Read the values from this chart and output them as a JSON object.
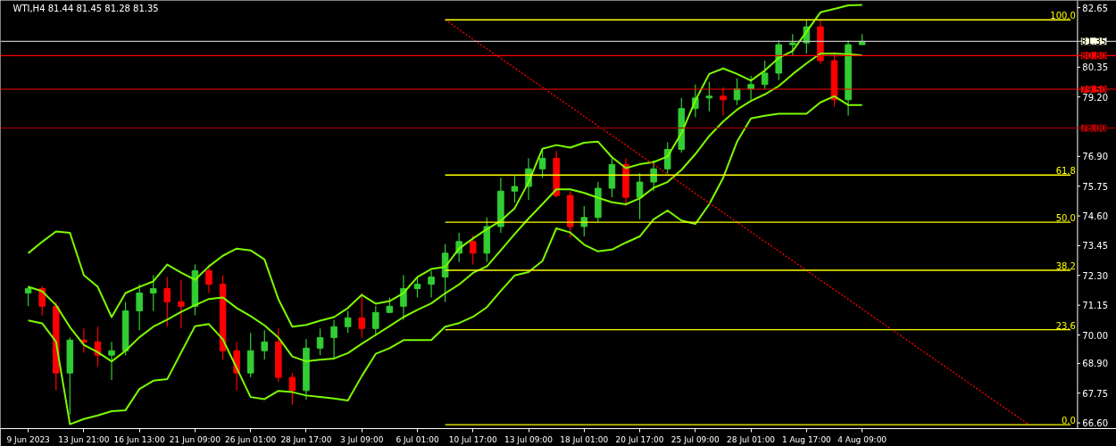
{
  "chart_data": {
    "type": "candlestick",
    "title": "WTI,H4  81.44 81.45 81.28 81.35",
    "ylim": [
      66.38,
      82.93
    ],
    "yticks": [
      82.65,
      80.35,
      {
        "value": 79.2,
        "label": "79.20"
      },
      {
        "value": 76.9,
        "label": "76.90"
      },
      75.75,
      {
        "value": 74.6,
        "label": "74.60"
      },
      73.45,
      {
        "value": 72.3,
        "label": "72.30"
      },
      71.15,
      {
        "value": 70.0,
        "label": "70.00"
      },
      {
        "value": 68.9,
        "label": "68.90"
      },
      67.75,
      {
        "value": 66.6,
        "label": "66.60"
      }
    ],
    "categories": [
      "9 Jun 2023",
      null,
      null,
      null,
      "13 Jun 21:00",
      null,
      null,
      null,
      "16 Jun 13:00",
      null,
      null,
      null,
      "21 Jun 09:00",
      null,
      null,
      null,
      "26 Jun 01:00",
      null,
      null,
      null,
      "28 Jun 17:00",
      null,
      null,
      null,
      "3 Jul 09:00",
      null,
      null,
      null,
      "6 Jul 01:00",
      null,
      null,
      null,
      "10 Jul 17:00",
      null,
      null,
      null,
      "13 Jul 09:00",
      null,
      null,
      null,
      "18 Jul 01:00",
      null,
      null,
      null,
      "20 Jul 17:00",
      null,
      null,
      null,
      "25 Jul 09:00",
      null,
      null,
      null,
      "28 Jul 01:00",
      null,
      null,
      null,
      "1 Aug 17:00",
      null,
      null,
      null,
      "4 Aug 09:00",
      null,
      null,
      null,
      null,
      null,
      null,
      null,
      null,
      null,
      null,
      null,
      null,
      null,
      null,
      null
    ],
    "ohlc": [
      [
        71.62,
        71.89,
        71.11,
        71.79
      ],
      [
        71.79,
        71.89,
        70.76,
        71.11
      ],
      [
        71.11,
        71.28,
        67.85,
        68.53
      ],
      [
        68.53,
        69.9,
        66.92,
        69.8
      ],
      [
        69.8,
        70.25,
        69.32,
        69.73
      ],
      [
        69.73,
        70.32,
        68.77,
        69.22
      ],
      [
        69.22,
        69.73,
        68.26,
        69.39
      ],
      [
        69.39,
        71.28,
        69.22,
        70.93
      ],
      [
        70.93,
        71.96,
        70.18,
        71.62
      ],
      [
        71.62,
        72.31,
        70.93,
        71.79
      ],
      [
        71.79,
        72.24,
        70.32,
        71.28
      ],
      [
        71.28,
        72.13,
        70.25,
        71.11
      ],
      [
        71.11,
        72.72,
        70.76,
        72.48
      ],
      [
        72.48,
        72.72,
        71.62,
        71.96
      ],
      [
        71.96,
        72.31,
        69.05,
        69.39
      ],
      [
        69.39,
        69.73,
        67.85,
        68.53
      ],
      [
        68.53,
        70.08,
        68.36,
        69.39
      ],
      [
        69.39,
        70.18,
        69.05,
        69.73
      ],
      [
        69.73,
        70.25,
        68.19,
        68.36
      ],
      [
        68.36,
        68.53,
        67.3,
        67.85
      ],
      [
        67.85,
        69.84,
        67.5,
        69.49
      ],
      [
        69.49,
        70.25,
        69.22,
        69.9
      ],
      [
        69.9,
        70.59,
        69.05,
        70.32
      ],
      [
        70.32,
        70.93,
        70.08,
        70.66
      ],
      [
        70.66,
        71.62,
        69.9,
        70.25
      ],
      [
        70.25,
        71.11,
        69.97,
        70.87
      ],
      [
        70.87,
        71.45,
        70.87,
        71.11
      ],
      [
        71.11,
        72.31,
        70.59,
        71.79
      ],
      [
        71.79,
        72.24,
        71.45,
        71.96
      ],
      [
        71.96,
        72.48,
        71.45,
        72.24
      ],
      [
        72.24,
        73.51,
        71.28,
        73.16
      ],
      [
        73.16,
        73.95,
        72.82,
        73.61
      ],
      [
        73.61,
        73.85,
        72.72,
        73.16
      ],
      [
        73.16,
        74.54,
        72.82,
        74.19
      ],
      [
        74.19,
        76.08,
        73.95,
        75.56
      ],
      [
        75.56,
        76.15,
        75.12,
        75.74
      ],
      [
        75.74,
        76.83,
        75.22,
        76.42
      ],
      [
        76.42,
        77.17,
        76.08,
        76.83
      ],
      [
        76.83,
        77.11,
        75.32,
        75.39
      ],
      [
        75.39,
        75.56,
        73.75,
        74.19
      ],
      [
        74.19,
        74.98,
        73.81,
        74.54
      ],
      [
        74.54,
        75.91,
        74.36,
        75.67
      ],
      [
        75.67,
        76.83,
        75.32,
        76.59
      ],
      [
        76.59,
        76.83,
        74.98,
        75.32
      ],
      [
        75.32,
        76.25,
        74.47,
        75.91
      ],
      [
        75.91,
        76.76,
        75.56,
        76.42
      ],
      [
        76.42,
        77.45,
        76.25,
        77.17
      ],
      [
        77.17,
        79.16,
        77.04,
        78.75
      ],
      [
        78.75,
        79.68,
        78.41,
        79.16
      ],
      [
        79.16,
        79.78,
        78.65,
        79.23
      ],
      [
        79.23,
        79.57,
        78.48,
        79.09
      ],
      [
        79.09,
        79.92,
        78.89,
        79.51
      ],
      [
        79.51,
        80.02,
        79.09,
        79.68
      ],
      [
        79.68,
        80.6,
        79.51,
        80.12
      ],
      [
        80.12,
        81.39,
        79.85,
        81.22
      ],
      [
        81.22,
        81.63,
        80.81,
        81.29
      ],
      [
        81.29,
        82.18,
        80.88,
        81.91
      ],
      [
        81.91,
        82.18,
        80.47,
        80.6
      ],
      [
        80.6,
        80.95,
        78.82,
        79.09
      ],
      [
        79.09,
        81.39,
        78.48,
        81.22
      ],
      [
        81.22,
        81.63,
        81.22,
        81.35
      ],
      null,
      null,
      null,
      null,
      null,
      null,
      null,
      null,
      null,
      null,
      null,
      null,
      null,
      null,
      null
    ],
    "colors": [
      "#32cd32",
      "#ff0000",
      "#ff0000",
      "#32cd32",
      "#ff0000",
      "#ff0000",
      "#32cd32",
      "#32cd32",
      "#32cd32",
      "#32cd32",
      "#ff0000",
      "#ff0000",
      "#32cd32",
      "#ff0000",
      "#ff0000",
      "#ff0000",
      "#32cd32",
      "#32cd32",
      "#ff0000",
      "#ff0000",
      "#32cd32",
      "#32cd32",
      "#32cd32",
      "#32cd32",
      "#ff0000",
      "#32cd32",
      "#32cd32",
      "#32cd32",
      "#32cd32",
      "#32cd32",
      "#32cd32",
      "#32cd32",
      "#ff0000",
      "#32cd32",
      "#32cd32",
      "#32cd32",
      "#32cd32",
      "#32cd32",
      "#ff0000",
      "#ff0000",
      "#32cd32",
      "#32cd32",
      "#32cd32",
      "#ff0000",
      "#32cd32",
      "#32cd32",
      "#32cd32",
      "#32cd32",
      "#32cd32",
      "#32cd32",
      "#ff0000",
      "#32cd32",
      "#32cd32",
      "#32cd32",
      "#32cd32",
      "#32cd32",
      "#32cd32",
      "#ff0000",
      "#ff0000",
      "#32cd32",
      "#32cd32",
      null,
      null,
      null,
      null,
      null,
      null,
      null,
      null,
      null,
      null,
      null,
      null,
      null,
      null,
      null
    ],
    "series": [
      {
        "type": "line",
        "color": "#7cfc00",
        "values": [
          73.16,
          73.6,
          74.0,
          73.95,
          72.31,
          71.86,
          70.69,
          71.62,
          71.86,
          72.07,
          72.72,
          72.41,
          72.13,
          72.65,
          73.06,
          73.34,
          73.27,
          72.92,
          71.38,
          70.32,
          70.39,
          70.55,
          70.69,
          71.04,
          71.55,
          71.21,
          71.31,
          71.62,
          72.24,
          72.55,
          72.63,
          73.34,
          73.73,
          74.09,
          74.41,
          74.9,
          75.9,
          77.2,
          77.34,
          77.24,
          77.43,
          77.47,
          76.87,
          76.45,
          76.6,
          76.68,
          76.9,
          77.8,
          79.06,
          80.09,
          80.3,
          80.09,
          79.83,
          80.22,
          80.71,
          80.98,
          81.72,
          82.47,
          82.6,
          82.74,
          82.76,
          null,
          null,
          null,
          null,
          null,
          null,
          null,
          null,
          null,
          null,
          null,
          null,
          null,
          null,
          null
        ]
      },
      {
        "type": "line",
        "color": "#7cfc00",
        "values": [
          71.86,
          71.69,
          71.15,
          70.3,
          69.62,
          69.33,
          68.98,
          69.39,
          69.91,
          70.32,
          70.59,
          70.89,
          71.15,
          71.39,
          71.45,
          71.04,
          70.73,
          70.37,
          69.9,
          69.17,
          68.98,
          69.04,
          69.09,
          69.3,
          69.66,
          70.0,
          70.34,
          70.69,
          70.97,
          71.22,
          71.61,
          71.95,
          72.4,
          72.65,
          73.27,
          73.9,
          74.5,
          75.06,
          75.63,
          75.63,
          75.49,
          75.3,
          75.13,
          75.05,
          75.28,
          75.69,
          75.91,
          76.38,
          76.99,
          77.69,
          78.25,
          78.71,
          79.05,
          79.3,
          79.62,
          80.08,
          80.5,
          80.88,
          80.88,
          80.85,
          80.81,
          null,
          null,
          null,
          null,
          null,
          null,
          null,
          null,
          null,
          null,
          null,
          null,
          null,
          null,
          null
        ]
      },
      {
        "type": "line",
        "color": "#7cfc00",
        "values": [
          70.56,
          70.45,
          69.74,
          66.55,
          66.75,
          66.89,
          67.05,
          67.09,
          67.91,
          68.23,
          68.29,
          69.32,
          70.34,
          70.42,
          69.83,
          68.72,
          67.6,
          67.52,
          67.84,
          67.79,
          67.66,
          67.6,
          67.54,
          67.47,
          68.41,
          69.27,
          69.49,
          69.8,
          69.8,
          69.8,
          70.32,
          70.46,
          70.7,
          71.07,
          71.7,
          72.3,
          72.43,
          72.86,
          74.12,
          73.96,
          73.49,
          73.23,
          73.3,
          73.57,
          73.81,
          74.47,
          74.81,
          74.42,
          74.29,
          75.05,
          76.07,
          77.47,
          78.37,
          78.47,
          78.55,
          78.55,
          78.55,
          78.99,
          79.23,
          78.89,
          78.89,
          null,
          null,
          null,
          null,
          null,
          null,
          null,
          null,
          null,
          null,
          null,
          null,
          null,
          null,
          null
        ]
      },
      {
        "type": "line",
        "color": "#ff0000",
        "line_style": "dotted",
        "values": [
          null,
          null,
          null,
          null,
          null,
          null,
          null,
          null,
          null,
          null,
          null,
          null,
          null,
          null,
          null,
          null,
          null,
          null,
          null,
          null,
          null,
          null,
          null,
          null,
          null,
          null,
          null,
          null,
          null,
          null,
          82.18,
          81.81,
          81.43,
          81.06,
          80.69,
          80.32,
          79.94,
          79.57,
          79.2,
          78.83,
          78.45,
          78.08,
          77.71,
          77.34,
          76.96,
          76.59,
          76.22,
          75.85,
          75.47,
          75.1,
          74.73,
          74.36,
          73.98,
          73.61,
          73.24,
          72.87,
          72.49,
          72.12,
          71.75,
          71.38,
          71.0,
          70.63,
          70.26,
          69.89,
          69.51,
          69.14,
          68.77,
          68.4,
          68.02,
          67.65,
          67.28,
          66.91,
          66.53,
          null,
          null,
          null
        ]
      },
      {
        "type": "line",
        "color": "#ffff00",
        "name": "100.0",
        "values": [
          null,
          null,
          null,
          null,
          null,
          null,
          null,
          null,
          null,
          null,
          null,
          null,
          null,
          null,
          null,
          null,
          null,
          null,
          null,
          null,
          null,
          null,
          null,
          null,
          null,
          null,
          null,
          null,
          null,
          null,
          82.18,
          82.18,
          82.18,
          82.18,
          82.18,
          82.18,
          82.18,
          82.18,
          82.18,
          82.18,
          82.18,
          82.18,
          82.18,
          82.18,
          82.18,
          82.18,
          82.18,
          82.18,
          82.18,
          82.18,
          82.18,
          82.18,
          82.18,
          82.18,
          82.18,
          82.18,
          82.18,
          82.18,
          82.18,
          82.18,
          82.18,
          82.18,
          82.18,
          82.18,
          82.18,
          82.18,
          82.18,
          82.18,
          82.18,
          82.18,
          82.18,
          82.18,
          82.18,
          82.18,
          82.18,
          82.18
        ]
      },
      {
        "type": "line",
        "color": "#ffff00",
        "name": "61.8",
        "values": [
          null,
          null,
          null,
          null,
          null,
          null,
          null,
          null,
          null,
          null,
          null,
          null,
          null,
          null,
          null,
          null,
          null,
          null,
          null,
          null,
          null,
          null,
          null,
          null,
          null,
          null,
          null,
          null,
          null,
          null,
          76.18,
          76.18,
          76.18,
          76.18,
          76.18,
          76.18,
          76.18,
          76.18,
          76.18,
          76.18,
          76.18,
          76.18,
          76.18,
          76.18,
          76.18,
          76.18,
          76.18,
          76.18,
          76.18,
          76.18,
          76.18,
          76.18,
          76.18,
          76.18,
          76.18,
          76.18,
          76.18,
          76.18,
          76.18,
          76.18,
          76.18,
          76.18,
          76.18,
          76.18,
          76.18,
          76.18,
          76.18,
          76.18,
          76.18,
          76.18,
          76.18,
          76.18,
          76.18,
          76.18,
          76.18,
          76.18
        ]
      },
      {
        "type": "line",
        "color": "#ffff00",
        "name": "50.0",
        "values": [
          null,
          null,
          null,
          null,
          null,
          null,
          null,
          null,
          null,
          null,
          null,
          null,
          null,
          null,
          null,
          null,
          null,
          null,
          null,
          null,
          null,
          null,
          null,
          null,
          null,
          null,
          null,
          null,
          null,
          null,
          74.36,
          74.36,
          74.36,
          74.36,
          74.36,
          74.36,
          74.36,
          74.36,
          74.36,
          74.36,
          74.36,
          74.36,
          74.36,
          74.36,
          74.36,
          74.36,
          74.36,
          74.36,
          74.36,
          74.36,
          74.36,
          74.36,
          74.36,
          74.36,
          74.36,
          74.36,
          74.36,
          74.36,
          74.36,
          74.36,
          74.36,
          74.36,
          74.36,
          74.36,
          74.36,
          74.36,
          74.36,
          74.36,
          74.36,
          74.36,
          74.36,
          74.36,
          74.36,
          74.36,
          74.36,
          74.36
        ]
      },
      {
        "type": "line",
        "color": "#ffff00",
        "name": "38.2",
        "values": [
          null,
          null,
          null,
          null,
          null,
          null,
          null,
          null,
          null,
          null,
          null,
          null,
          null,
          null,
          null,
          null,
          null,
          null,
          null,
          null,
          null,
          null,
          null,
          null,
          null,
          null,
          null,
          null,
          null,
          null,
          72.5,
          72.5,
          72.5,
          72.5,
          72.5,
          72.5,
          72.5,
          72.5,
          72.5,
          72.5,
          72.5,
          72.5,
          72.5,
          72.5,
          72.5,
          72.5,
          72.5,
          72.5,
          72.5,
          72.5,
          72.5,
          72.5,
          72.5,
          72.5,
          72.5,
          72.5,
          72.5,
          72.5,
          72.5,
          72.5,
          72.5,
          72.5,
          72.5,
          72.5,
          72.5,
          72.5,
          72.5,
          72.5,
          72.5,
          72.5,
          72.5,
          72.5,
          72.5,
          72.5,
          72.5,
          72.5
        ]
      },
      {
        "type": "line",
        "color": "#ffff00",
        "name": "23.6",
        "values": [
          null,
          null,
          null,
          null,
          null,
          null,
          null,
          null,
          null,
          null,
          null,
          null,
          null,
          null,
          null,
          null,
          null,
          null,
          null,
          null,
          null,
          null,
          null,
          null,
          null,
          null,
          null,
          null,
          null,
          null,
          70.2,
          70.2,
          70.2,
          70.2,
          70.2,
          70.2,
          70.2,
          70.2,
          70.2,
          70.2,
          70.2,
          70.2,
          70.2,
          70.2,
          70.2,
          70.2,
          70.2,
          70.2,
          70.2,
          70.2,
          70.2,
          70.2,
          70.2,
          70.2,
          70.2,
          70.2,
          70.2,
          70.2,
          70.2,
          70.2,
          70.2,
          70.2,
          70.2,
          70.2,
          70.2,
          70.2,
          70.2,
          70.2,
          70.2,
          70.2,
          70.2,
          70.2,
          70.2,
          70.2,
          70.2,
          70.2
        ]
      },
      {
        "type": "line",
        "color": "#ffff00",
        "name": "0.0",
        "values": [
          null,
          null,
          null,
          null,
          null,
          null,
          null,
          null,
          null,
          null,
          null,
          null,
          null,
          null,
          null,
          null,
          null,
          null,
          null,
          null,
          null,
          null,
          null,
          null,
          null,
          null,
          null,
          null,
          null,
          null,
          66.53,
          66.53,
          66.53,
          66.53,
          66.53,
          66.53,
          66.53,
          66.53,
          66.53,
          66.53,
          66.53,
          66.53,
          66.53,
          66.53,
          66.53,
          66.53,
          66.53,
          66.53,
          66.53,
          66.53,
          66.53,
          66.53,
          66.53,
          66.53,
          66.53,
          66.53,
          66.53,
          66.53,
          66.53,
          66.53,
          66.53,
          66.53,
          66.53,
          66.53,
          66.53,
          66.53,
          66.53,
          66.53,
          66.53,
          66.53,
          66.53,
          66.53,
          66.53,
          66.53,
          66.53,
          66.53
        ]
      }
    ],
    "ref_lines": [
      {
        "axis": "y",
        "value": 81.35,
        "label": "81.35",
        "color": "#c0c0c0"
      },
      {
        "axis": "y",
        "value": 80.8,
        "label": "80.80",
        "color": "#ff0000"
      },
      {
        "axis": "y",
        "value": 79.5,
        "label": "79.50",
        "color": "#ff0000"
      },
      {
        "axis": "y",
        "value": 78.0,
        "label": "78.00",
        "color": "#b00000"
      }
    ]
  }
}
